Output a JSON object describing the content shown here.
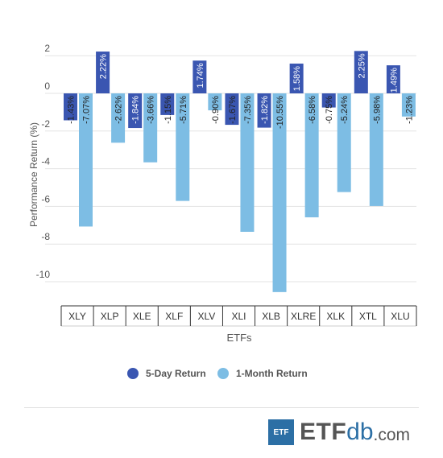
{
  "chart_data": {
    "type": "bar",
    "categories": [
      "XLY",
      "XLP",
      "XLE",
      "XLF",
      "XLV",
      "XLI",
      "XLB",
      "XLRE",
      "XLK",
      "XTL",
      "XLU"
    ],
    "series": [
      {
        "name": "5-Day Return",
        "values": [
          -1.43,
          2.22,
          -1.84,
          -1.15,
          1.74,
          -1.67,
          -1.82,
          1.58,
          -0.75,
          2.25,
          1.49
        ],
        "labels": [
          "-1.43%",
          "2.22%",
          "-1.84%",
          "-1.15%",
          "1.74%",
          "-1.67%",
          "-1.82%",
          "1.58%",
          "-0.75%",
          "2.25%",
          "1.49%"
        ],
        "color": "#3a56b1"
      },
      {
        "name": "1-Month Return",
        "values": [
          -7.07,
          -2.62,
          -3.66,
          -5.71,
          -0.9,
          -7.35,
          -10.55,
          -6.58,
          -5.24,
          -5.98,
          -1.23
        ],
        "labels": [
          "-7.07%",
          "-2.62%",
          "-3.66%",
          "-5.71%",
          "-0.90%",
          "-7.35%",
          "-10.55%",
          "-6.58%",
          "-5.24%",
          "-5.98%",
          "-1.23%"
        ],
        "color": "#7dbde4"
      }
    ],
    "title": "",
    "xlabel": "ETFs",
    "ylabel": "Performance Return (%)",
    "ylim": [
      -11.2,
      2.4
    ],
    "yticks": [
      2,
      0,
      -2,
      -4,
      -6,
      -8,
      -10
    ],
    "grid": true,
    "legend_position": "bottom"
  },
  "logo": {
    "badge": "ETF",
    "etf": "ETF",
    "db": "db",
    "com": ".com"
  }
}
